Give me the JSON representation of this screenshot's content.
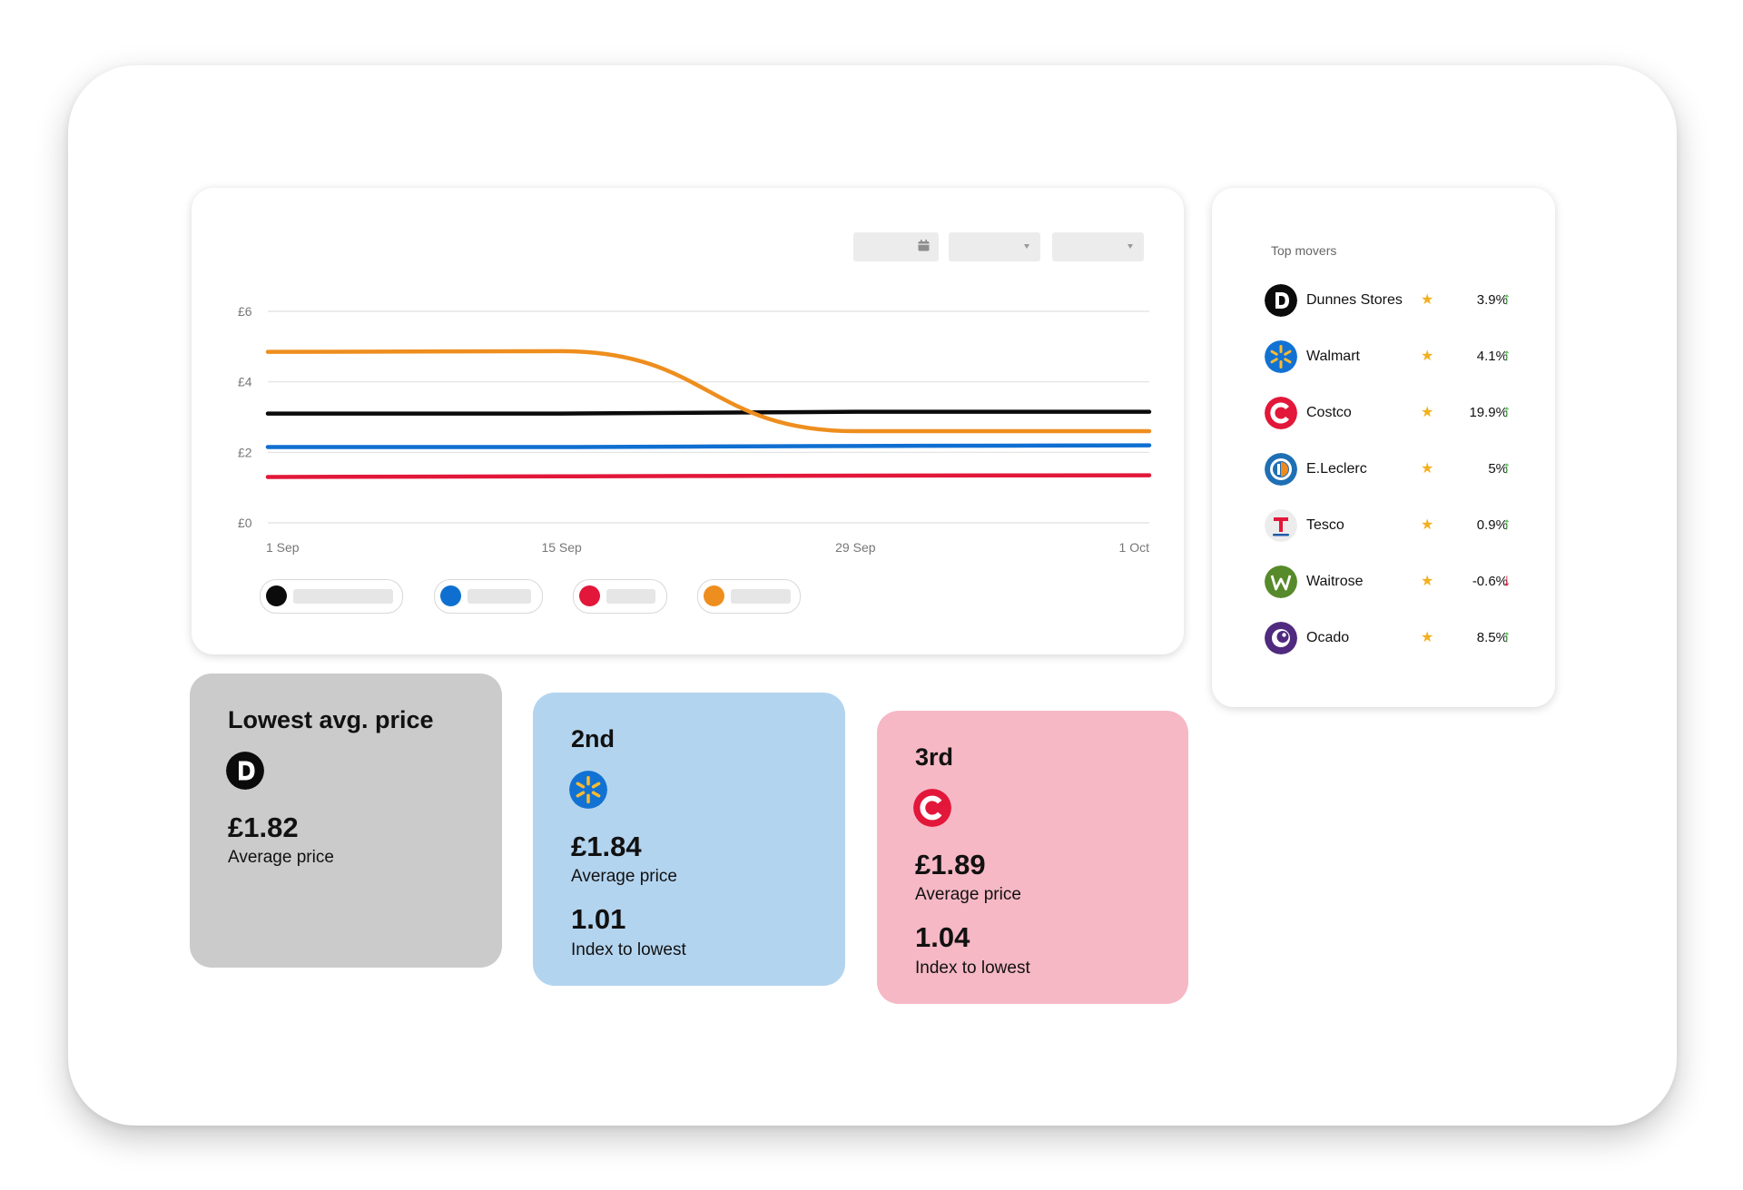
{
  "colors": {
    "black_series": "#0b0b0b",
    "blue_series": "#0f6fd1",
    "red_series": "#e2173a",
    "orange_series": "#ee8e1e",
    "star": "#f2b01e",
    "up_arrow": "#46b94b",
    "down_arrow": "#e2173a"
  },
  "chart_data": {
    "type": "line",
    "x": [
      "1 Sep",
      "15 Sep",
      "29 Sep",
      "1 Oct"
    ],
    "y_ticks": [
      "£6",
      "£4",
      "£2",
      "£0"
    ],
    "y_values": [
      6,
      4,
      2,
      0
    ],
    "ylim": [
      0,
      6
    ],
    "grid": true,
    "series": [
      {
        "color": "#0b0b0b",
        "values": [
          3.1,
          3.1,
          3.15,
          3.15
        ]
      },
      {
        "color": "#0f6fd1",
        "values": [
          2.15,
          2.15,
          2.18,
          2.2
        ]
      },
      {
        "color": "#e2173a",
        "values": [
          1.3,
          1.32,
          1.34,
          1.35
        ]
      },
      {
        "color": "#ee8e1e",
        "values": [
          4.85,
          4.87,
          2.6,
          2.6
        ]
      }
    ]
  },
  "legend": [
    {
      "color": "#0b0b0b"
    },
    {
      "color": "#0f6fd1"
    },
    {
      "color": "#e2173a"
    },
    {
      "color": "#ee8e1e"
    }
  ],
  "movers": {
    "title": "Top movers",
    "items": [
      {
        "name": "Dunnes Stores",
        "pct": "3.9%",
        "dir": "up",
        "logo": "dunnes-logo"
      },
      {
        "name": "Walmart",
        "pct": "4.1%",
        "dir": "up",
        "logo": "walmart-logo"
      },
      {
        "name": "Costco",
        "pct": "19.9%",
        "dir": "up",
        "logo": "costco-logo"
      },
      {
        "name": "E.Leclerc",
        "pct": "5%",
        "dir": "up",
        "logo": "leclerc-logo"
      },
      {
        "name": "Tesco",
        "pct": "0.9%",
        "dir": "up",
        "logo": "tesco-logo"
      },
      {
        "name": "Waitrose",
        "pct": "-0.6%",
        "dir": "down",
        "logo": "waitrose-logo"
      },
      {
        "name": "Ocado",
        "pct": "8.5%",
        "dir": "up",
        "logo": "ocado-logo"
      }
    ]
  },
  "stats": {
    "first": {
      "title": "Lowest avg. price",
      "price": "£1.82",
      "price_label": "Average price"
    },
    "second": {
      "title": "2nd",
      "price": "£1.84",
      "price_label": "Average price",
      "index": "1.01",
      "index_label": "Index to lowest"
    },
    "third": {
      "title": "3rd",
      "price": "£1.89",
      "price_label": "Average price",
      "index": "1.04",
      "index_label": "Index to lowest"
    }
  }
}
